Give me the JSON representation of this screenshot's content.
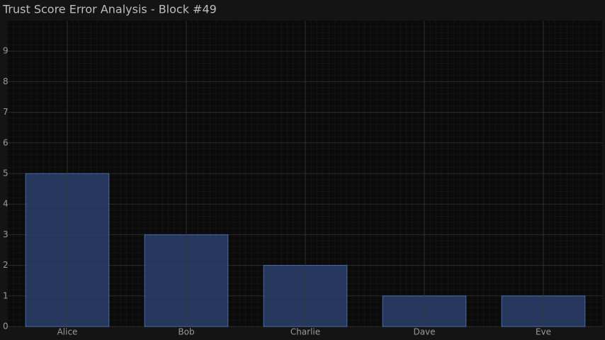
{
  "chart_data": {
    "type": "bar",
    "title": "Trust Score Error Analysis - Block #49",
    "categories": [
      "Alice",
      "Bob",
      "Charlie",
      "Dave",
      "Eve"
    ],
    "values": [
      5,
      3,
      2,
      1,
      1
    ],
    "color": "#2b3f6c",
    "ylim": [
      0,
      10
    ],
    "yticks": [
      0,
      1,
      2,
      3,
      4,
      5,
      6,
      7,
      8,
      9
    ],
    "grid": true
  }
}
